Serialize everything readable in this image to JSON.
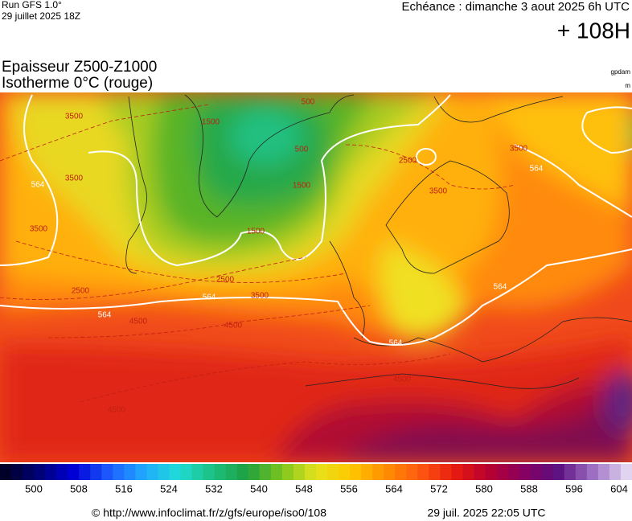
{
  "header": {
    "run": "Run GFS 1.0°",
    "run_date": "29 juillet 2025 18Z",
    "valid": "Echéance : dimanche 3 aout 2025 6h UTC",
    "lead": "+ 108H"
  },
  "map": {
    "title": "Epaisseur Z500-Z1000",
    "subtitle": "Isotherme 0°C (rouge)",
    "unit_primary": "gpdam",
    "unit_secondary": "m",
    "contour_labels": [
      "564",
      "564",
      "564",
      "564",
      "564",
      "564",
      "3500",
      "3500",
      "3500",
      "2500",
      "1500",
      "500",
      "500",
      "1500",
      "2500",
      "3500",
      "4500",
      "4500",
      "4500",
      "2500",
      "1500",
      "3500",
      "3500",
      "4500"
    ]
  },
  "colorbar": {
    "labels": [
      "500",
      "508",
      "516",
      "524",
      "532",
      "540",
      "548",
      "556",
      "564",
      "572",
      "580",
      "588",
      "596",
      "604"
    ],
    "colors": [
      "#000028",
      "#00007a",
      "#0000d8",
      "#1e5cff",
      "#20a8ff",
      "#20dcd8",
      "#1cc080",
      "#1ea040",
      "#7cc41e",
      "#e4e41e",
      "#ffc800",
      "#ff9000",
      "#ff5a10",
      "#e81c10",
      "#b80030",
      "#880060",
      "#5c1080",
      "#9c6cc0",
      "#e0d4f0"
    ]
  },
  "footer": {
    "url": "© http://www.infoclimat.fr/z/gfs/europe/iso0/108",
    "generated": "29 juil. 2025 22:05 UTC"
  }
}
